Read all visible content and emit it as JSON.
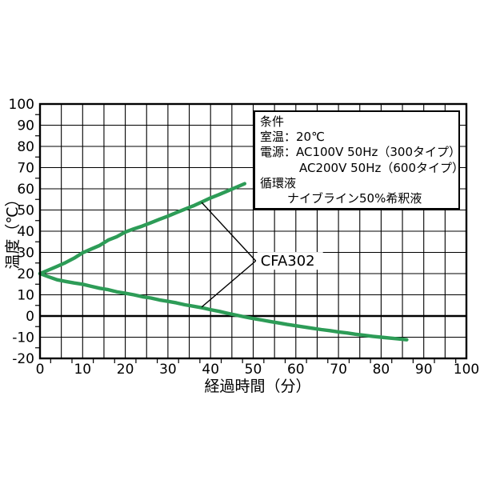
{
  "chart_data": {
    "type": "line",
    "title": "",
    "xlabel": "経過時間（分）",
    "ylabel": "温度（℃）",
    "xlim": [
      0,
      100
    ],
    "ylim": [
      -20,
      100
    ],
    "x_ticks": [
      0,
      10,
      20,
      30,
      40,
      50,
      60,
      70,
      80,
      90,
      100
    ],
    "y_ticks": [
      -20,
      -10,
      0,
      10,
      20,
      30,
      40,
      50,
      60,
      70,
      80,
      90,
      100
    ],
    "x_gridline_step": 5,
    "y_gridline_step": 10,
    "x_minor_tick_step": 2.5,
    "y_minor_tick_step": 5,
    "grid": true,
    "legend_position": "none",
    "line_color": "#2d9c57",
    "axis_color": "#000000",
    "emphasized_gridline_y": 0,
    "series": [
      {
        "id": "heating",
        "label": "CFA302",
        "points": [
          [
            0,
            20
          ],
          [
            2,
            21.7
          ],
          [
            4,
            23.4
          ],
          [
            6,
            25.2
          ],
          [
            8,
            27.3
          ],
          [
            10,
            29.8
          ],
          [
            12,
            31.6
          ],
          [
            14,
            33.3
          ],
          [
            16,
            35.8
          ],
          [
            18,
            37.4
          ],
          [
            20,
            39.6
          ],
          [
            22,
            41.1
          ],
          [
            24,
            42.4
          ],
          [
            26,
            44.0
          ],
          [
            28,
            45.6
          ],
          [
            30,
            47.1
          ],
          [
            32,
            48.8
          ],
          [
            34,
            50.4
          ],
          [
            36,
            52.0
          ],
          [
            38,
            53.8
          ],
          [
            40,
            55.7
          ],
          [
            42,
            57.3
          ],
          [
            44,
            59.0
          ],
          [
            46,
            60.7
          ],
          [
            48,
            62.4
          ]
        ]
      },
      {
        "id": "cooling",
        "label": "CFA302",
        "points": [
          [
            0,
            20
          ],
          [
            2,
            18.5
          ],
          [
            4,
            17.1
          ],
          [
            6,
            16.3
          ],
          [
            8,
            15.6
          ],
          [
            10,
            15.0
          ],
          [
            12,
            14.0
          ],
          [
            14,
            13.1
          ],
          [
            16,
            12.4
          ],
          [
            18,
            11.4
          ],
          [
            20,
            10.7
          ],
          [
            22,
            10.0
          ],
          [
            24,
            9.1
          ],
          [
            26,
            8.5
          ],
          [
            28,
            7.6
          ],
          [
            30,
            6.9
          ],
          [
            32,
            6.2
          ],
          [
            34,
            5.3
          ],
          [
            36,
            4.6
          ],
          [
            38,
            3.9
          ],
          [
            40,
            3.0
          ],
          [
            42,
            2.2
          ],
          [
            44,
            1.3
          ],
          [
            46,
            0.4
          ],
          [
            48,
            -0.4
          ],
          [
            50,
            -1.2
          ],
          [
            52,
            -1.9
          ],
          [
            54,
            -2.6
          ],
          [
            56,
            -3.3
          ],
          [
            58,
            -4.0
          ],
          [
            60,
            -4.6
          ],
          [
            62,
            -5.2
          ],
          [
            64,
            -5.8
          ],
          [
            66,
            -6.4
          ],
          [
            68,
            -6.9
          ],
          [
            70,
            -7.5
          ],
          [
            72,
            -8.0
          ],
          [
            74,
            -8.6
          ],
          [
            76,
            -9.1
          ],
          [
            78,
            -9.6
          ],
          [
            80,
            -10.0
          ],
          [
            82,
            -10.4
          ],
          [
            84,
            -10.8
          ],
          [
            86,
            -11.2
          ]
        ]
      }
    ],
    "annotation": {
      "text": "CFA302",
      "apex": [
        50.6,
        26
      ],
      "targets": [
        [
          37.9,
          53.6
        ],
        [
          37.9,
          4.2
        ]
      ]
    }
  },
  "condition_box": {
    "lines": [
      "条件",
      "室温：20℃",
      "電源：AC100V 50Hz（300タイプ）",
      "AC200V 50Hz（600タイプ）",
      "循環液",
      "ナイブライン50%希釈液"
    ]
  }
}
